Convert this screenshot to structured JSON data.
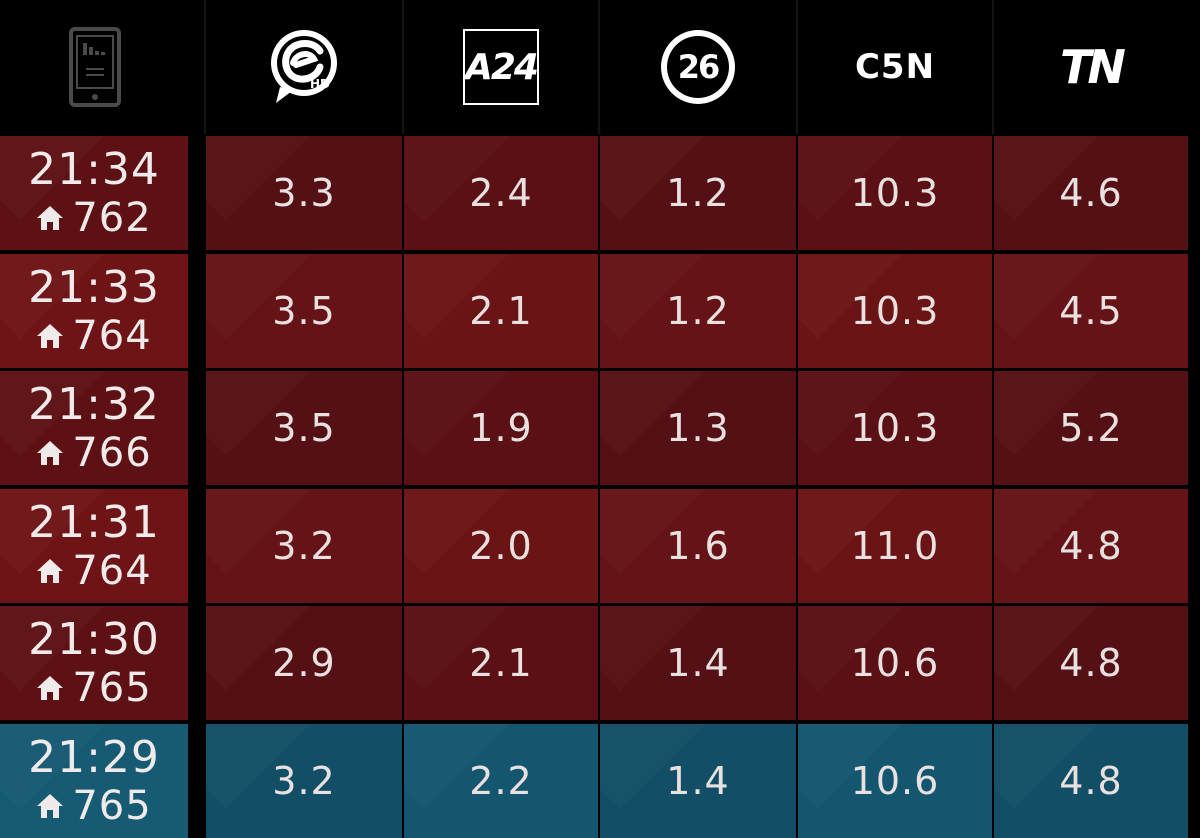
{
  "header": {
    "channels": [
      {
        "key": "c1",
        "icon": "eltrece-hd-logo-icon",
        "label": "HD"
      },
      {
        "key": "c2",
        "icon": "a24-logo-icon",
        "label": "A24"
      },
      {
        "key": "c3",
        "icon": "canal26-logo-icon",
        "label": "26"
      },
      {
        "key": "c4",
        "icon": "c5n-logo-icon",
        "label": "C5N"
      },
      {
        "key": "c5",
        "icon": "tn-logo-icon",
        "label": "TN"
      }
    ],
    "device_icon": "tablet-chart-icon"
  },
  "colors": {
    "red_row": "#6b1415",
    "red_row_alt": "#5a1014",
    "blue_row": "#145670",
    "header_bg": "#000000"
  },
  "rows": [
    {
      "time": "21:34",
      "homes": "762",
      "values": [
        "3.3",
        "2.4",
        "1.2",
        "10.3",
        "4.6"
      ],
      "style": "red alt"
    },
    {
      "time": "21:33",
      "homes": "764",
      "values": [
        "3.5",
        "2.1",
        "1.2",
        "10.3",
        "4.5"
      ],
      "style": "red"
    },
    {
      "time": "21:32",
      "homes": "766",
      "values": [
        "3.5",
        "1.9",
        "1.3",
        "10.3",
        "5.2"
      ],
      "style": "red alt"
    },
    {
      "time": "21:31",
      "homes": "764",
      "values": [
        "3.2",
        "2.0",
        "1.6",
        "11.0",
        "4.8"
      ],
      "style": "red"
    },
    {
      "time": "21:30",
      "homes": "765",
      "values": [
        "2.9",
        "2.1",
        "1.4",
        "10.6",
        "4.8"
      ],
      "style": "red alt"
    },
    {
      "time": "21:29",
      "homes": "765",
      "values": [
        "3.2",
        "2.2",
        "1.4",
        "10.6",
        "4.8"
      ],
      "style": "blue"
    }
  ]
}
